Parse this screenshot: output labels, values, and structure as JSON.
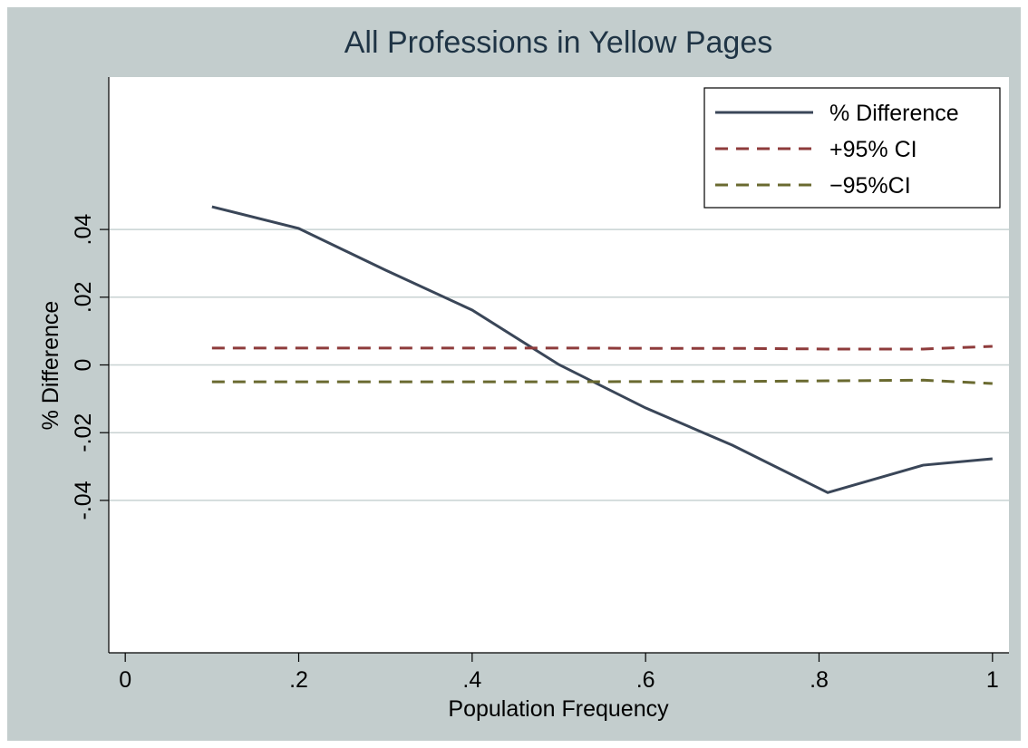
{
  "chart_data": {
    "type": "line",
    "title": "All Professions in Yellow Pages",
    "x_label": "Population Frequency",
    "y_label": "% Difference",
    "x": [
      0.1,
      0.2,
      0.3,
      0.4,
      0.5,
      0.6,
      0.7,
      0.81,
      0.92,
      1.0
    ],
    "series": [
      {
        "name": "% Difference",
        "color": "#3a4658",
        "dashed": false,
        "values": [
          0.0467,
          0.0403,
          0.028,
          0.0162,
          0.0001,
          -0.0127,
          -0.0237,
          -0.0377,
          -0.0296,
          -0.0277
        ]
      },
      {
        "name": "+95% CI",
        "color": "#8e3b3b",
        "dashed": true,
        "values": [
          0.005,
          0.005,
          0.005,
          0.005,
          0.005,
          0.0049,
          0.0049,
          0.0047,
          0.0047,
          0.0055
        ]
      },
      {
        "name": "−95%CI",
        "color": "#6a6a30",
        "dashed": true,
        "values": [
          -0.005,
          -0.005,
          -0.005,
          -0.005,
          -0.005,
          -0.0049,
          -0.0049,
          -0.0047,
          -0.0045,
          -0.0055
        ]
      }
    ],
    "xlim": [
      -0.019,
      1.019
    ],
    "ylim": [
      -0.085,
      0.085
    ],
    "xticks": [
      0,
      {
        "value": 0.2,
        "label": ".2"
      },
      {
        "value": 0.4,
        "label": ".4"
      },
      {
        "value": 0.6,
        "label": ".6"
      },
      {
        "value": 0.8,
        "label": ".8"
      },
      1
    ],
    "yticks": [
      {
        "value": -0.04,
        "label": "-.04"
      },
      {
        "value": -0.02,
        "label": "-.02"
      },
      0,
      {
        "value": 0.02,
        "label": ".02"
      },
      {
        "value": 0.04,
        "label": ".04"
      }
    ],
    "grid": true,
    "legend_position": "top-right"
  }
}
